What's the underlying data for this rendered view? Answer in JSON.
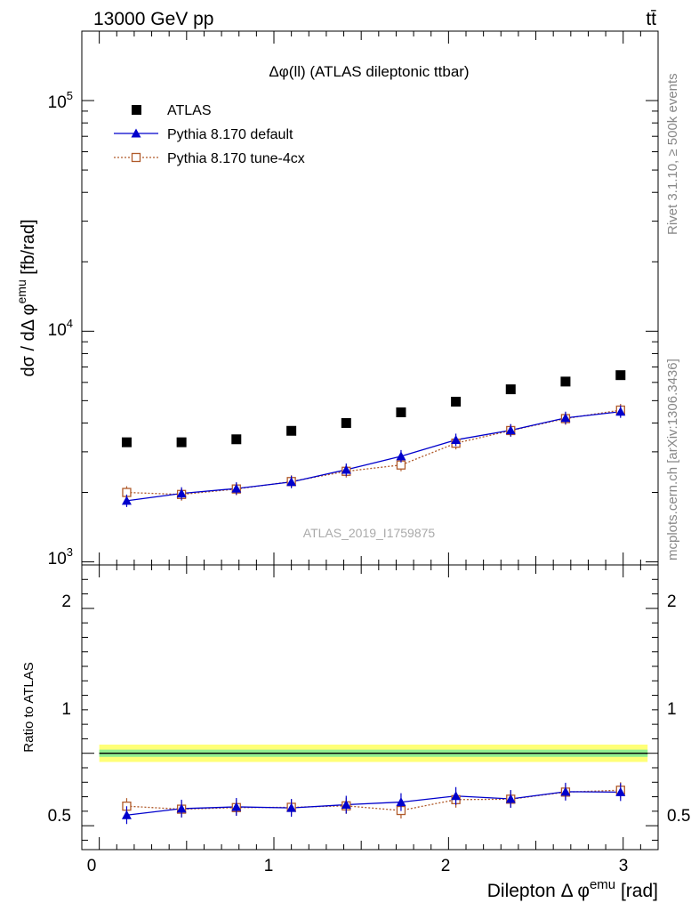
{
  "header": {
    "energy_label": "13000 GeV pp",
    "process_label": "tt̄"
  },
  "side_labels": {
    "rivet": "Rivet 3.1.10, ≥ 500k events",
    "mcplots": "mcplots.cern.ch [arXiv:1306.3436]"
  },
  "colors": {
    "data": "#000000",
    "default": "#0000cc",
    "tune": "#b05a2a",
    "band_inner": "#90ee90",
    "band_outer": "#ffff77"
  },
  "chart_data": [
    {
      "type": "scatter",
      "title": "Δφ(ll) (ATLAS dileptonic ttbar)",
      "watermark": "ATLAS_2019_I1759875",
      "xlabel": "Dilepton Δ φ^emu [rad]",
      "ylabel": "dσ / dΔ φ^emu [fb/rad]",
      "log_y": true,
      "xlim": [
        -0.1,
        3.2
      ],
      "ylim": [
        970,
        200000
      ],
      "y_ticks": [
        "10^3",
        "10^4",
        "10^5"
      ],
      "legend_position": "top-left",
      "x": [
        0.157,
        0.471,
        0.785,
        1.1,
        1.414,
        1.728,
        2.042,
        2.356,
        2.67,
        2.985
      ],
      "series": [
        {
          "name": "ATLAS",
          "marker": "filled-square",
          "values": [
            3300,
            3300,
            3400,
            3700,
            4000,
            4450,
            4950,
            5600,
            6050,
            6450
          ]
        },
        {
          "name": "Pythia 8.170 default",
          "marker": "filled-triangle",
          "line": "solid",
          "values": [
            1840,
            1980,
            2080,
            2220,
            2510,
            2870,
            3380,
            3720,
            4210,
            4480
          ]
        },
        {
          "name": "Pythia 8.170 tune-4cx",
          "marker": "open-square",
          "line": "dotted",
          "values": [
            2000,
            1960,
            2070,
            2230,
            2470,
            2630,
            3270,
            3710,
            4180,
            4550
          ]
        }
      ]
    },
    {
      "type": "scatter",
      "xlabel": "Dilepton Δ φ^emu [rad]",
      "ylabel": "Ratio to ATLAS",
      "xlim": [
        -0.1,
        3.2
      ],
      "ylim": [
        0.335,
        2.3
      ],
      "x_ticks": [
        "0",
        "1",
        "2",
        "3"
      ],
      "y_ticks": [
        "0.5",
        "1",
        "2"
      ],
      "x": [
        0.157,
        0.471,
        0.785,
        1.1,
        1.414,
        1.728,
        2.042,
        2.356,
        2.67,
        2.985
      ],
      "reference_band": {
        "x_range": [
          0.0,
          3.14
        ],
        "inner": [
          0.975,
          1.025
        ],
        "outer": [
          0.94,
          1.06
        ]
      },
      "series": [
        {
          "name": "Pythia 8.170 default",
          "marker": "filled-triangle",
          "line": "solid",
          "values": [
            0.573,
            0.618,
            0.63,
            0.623,
            0.645,
            0.663,
            0.705,
            0.685,
            0.735,
            0.732
          ]
        },
        {
          "name": "Pythia 8.170 tune-4cx",
          "marker": "open-square",
          "line": "dotted",
          "values": [
            0.635,
            0.614,
            0.625,
            0.627,
            0.637,
            0.605,
            0.68,
            0.683,
            0.732,
            0.745
          ]
        }
      ]
    }
  ]
}
